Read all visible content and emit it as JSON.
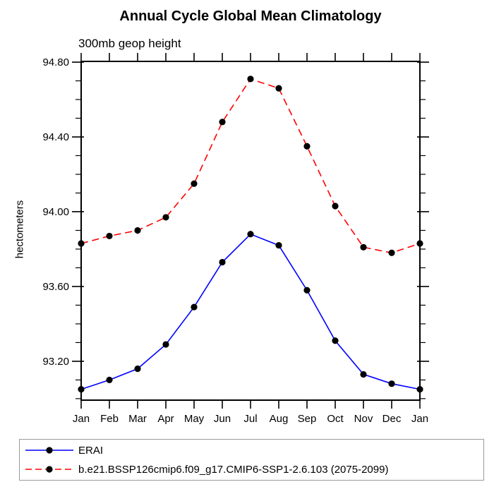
{
  "title": "Annual Cycle Global Mean Climatology",
  "subtitle": "300mb geop height",
  "y_axis_title": "hectometers",
  "legend": {
    "items": [
      {
        "label": "ERAI",
        "color": "#0000ff",
        "style": "solid"
      },
      {
        "label": "b.e21.BSSP126cmip6.f09_g17.CMIP6-SSP1-2.6.103 (2075-2099)",
        "color": "#ff0000",
        "style": "dashed"
      }
    ]
  },
  "chart_data": {
    "type": "line",
    "title": "Annual Cycle Global Mean Climatology",
    "subtitle": "300mb geop height",
    "xlabel": "",
    "ylabel": "hectometers",
    "categories": [
      "Jan",
      "Feb",
      "Mar",
      "Apr",
      "May",
      "Jun",
      "Jul",
      "Aug",
      "Sep",
      "Oct",
      "Nov",
      "Dec",
      "Jan"
    ],
    "series": [
      {
        "name": "ERAI",
        "color": "#0000ff",
        "line_style": "solid",
        "marker": "filled-circle",
        "marker_color": "#000000",
        "values": [
          93.05,
          93.1,
          93.16,
          93.29,
          93.49,
          93.73,
          93.88,
          93.82,
          93.58,
          93.31,
          93.13,
          93.08,
          93.05
        ]
      },
      {
        "name": "b.e21.BSSP126cmip6.f09_g17.CMIP6-SSP1-2.6.103 (2075-2099)",
        "color": "#ff0000",
        "line_style": "dashed",
        "marker": "filled-circle",
        "marker_color": "#000000",
        "values": [
          93.83,
          93.87,
          93.9,
          93.97,
          94.15,
          94.48,
          94.71,
          94.66,
          94.35,
          94.03,
          93.81,
          93.78,
          93.83
        ]
      }
    ],
    "ylim": [
      92.992,
      94.804
    ],
    "yticks_major": [
      93.2,
      93.6,
      94.0,
      94.4,
      94.8
    ],
    "ytick_minor_step": 0.1,
    "ytick_label_format": "0.00",
    "grid": false,
    "legend_position": "bottom-left"
  }
}
